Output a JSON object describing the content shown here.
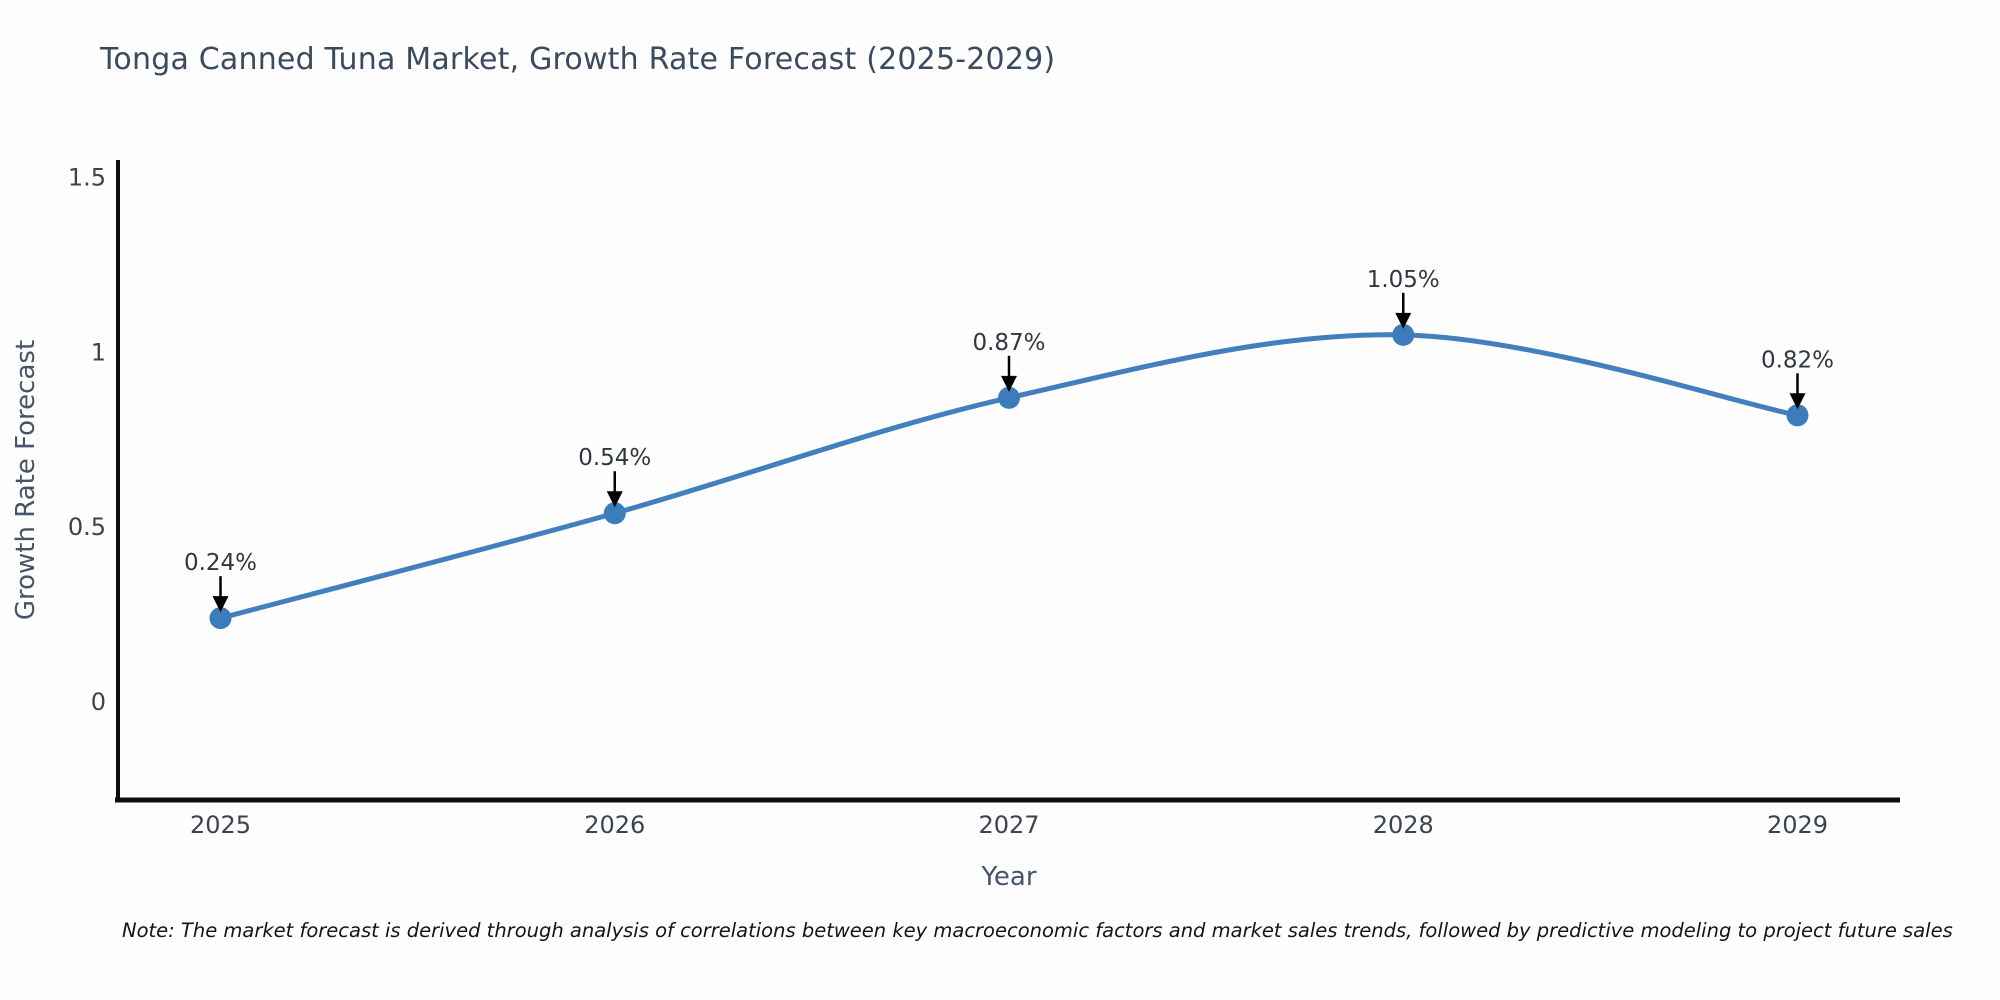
{
  "note": "Note: The market forecast is derived through analysis of correlations between key macroeconomic factors and market sales trends, followed by predictive modeling to project future sales",
  "chart_data": {
    "type": "line",
    "title": "Tonga Canned Tuna Market, Growth Rate Forecast (2025-2029)",
    "xlabel": "Year",
    "ylabel": "Growth Rate Forecast",
    "x": [
      2025,
      2026,
      2027,
      2028,
      2029
    ],
    "values": [
      0.24,
      0.54,
      0.87,
      1.05,
      0.82
    ],
    "point_labels": [
      "0.24%",
      "0.54%",
      "0.87%",
      "1.05%",
      "0.82%"
    ],
    "x_tick_labels": [
      "2025",
      "2026",
      "2027",
      "2028",
      "2029"
    ],
    "y_ticks": [
      0,
      0.5,
      1,
      1.5
    ],
    "y_tick_labels": [
      "0",
      "0.5",
      "1",
      "1.5"
    ],
    "xlim": [
      2024.74,
      2029.26
    ],
    "ylim": [
      -0.28,
      1.55
    ],
    "grid": false,
    "legend": "none",
    "line_color": "#417fbd",
    "marker_color": "#3d7cba",
    "axis_color": "#0d0d0d",
    "arrow_color": "#000000"
  }
}
